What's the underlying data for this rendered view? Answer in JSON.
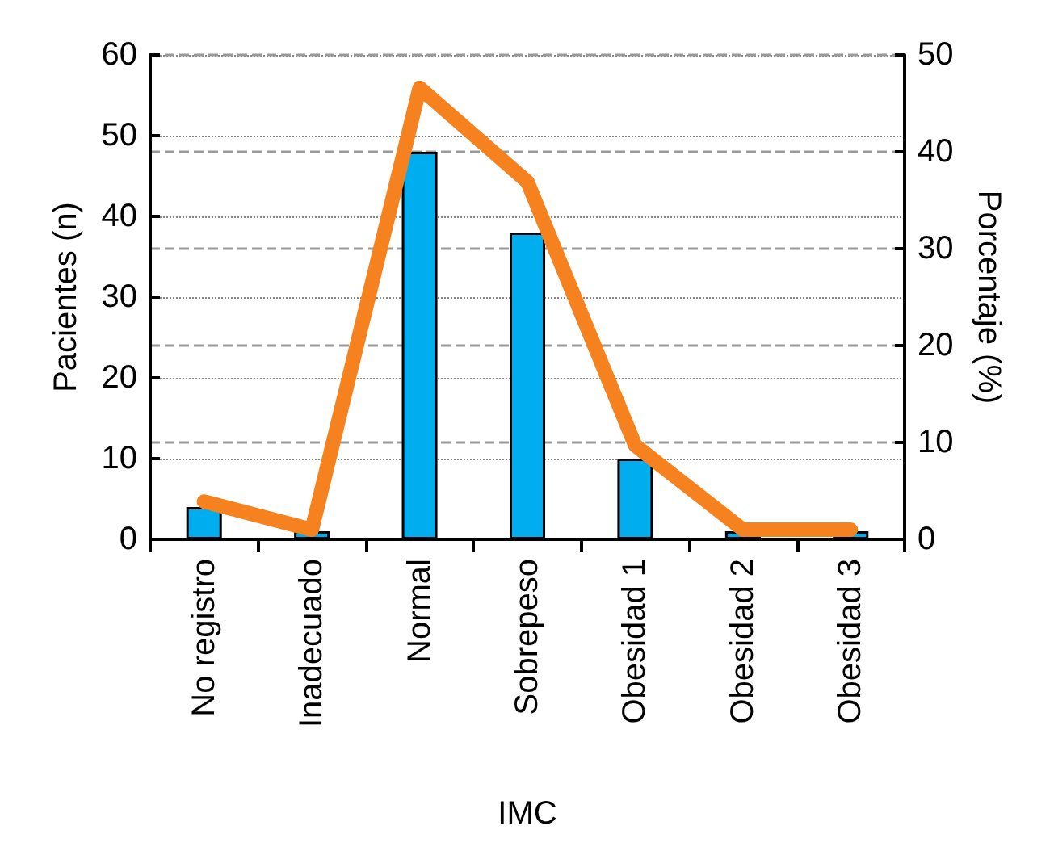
{
  "chart_data": {
    "type": "bar",
    "xlabel": "IMC",
    "ylabel": "Pacientes (n)",
    "y2label": "Porcentaje (%)",
    "categories": [
      "No registro",
      "Inadecuado",
      "Normal",
      "Sobrepeso",
      "Obesidad 1",
      "Obesidad 2",
      "Obesidad 3"
    ],
    "series": [
      {
        "color": "#00aeef",
        "values": [
          4,
          1,
          48,
          38,
          10,
          1,
          1
        ]
      },
      {
        "type": "line",
        "axis": "y2",
        "color": "#f5821f",
        "values": [
          3.9,
          1.0,
          46.6,
          36.9,
          9.7,
          1.0,
          1.0
        ]
      }
    ],
    "ylim": [
      0,
      60
    ],
    "yticks": [
      0,
      10,
      20,
      30,
      40,
      50,
      60
    ],
    "y2lim": [
      0,
      50
    ],
    "y2ticks": [
      0,
      10,
      20,
      30,
      40,
      50
    ],
    "grid": true,
    "line_style": "solid"
  }
}
